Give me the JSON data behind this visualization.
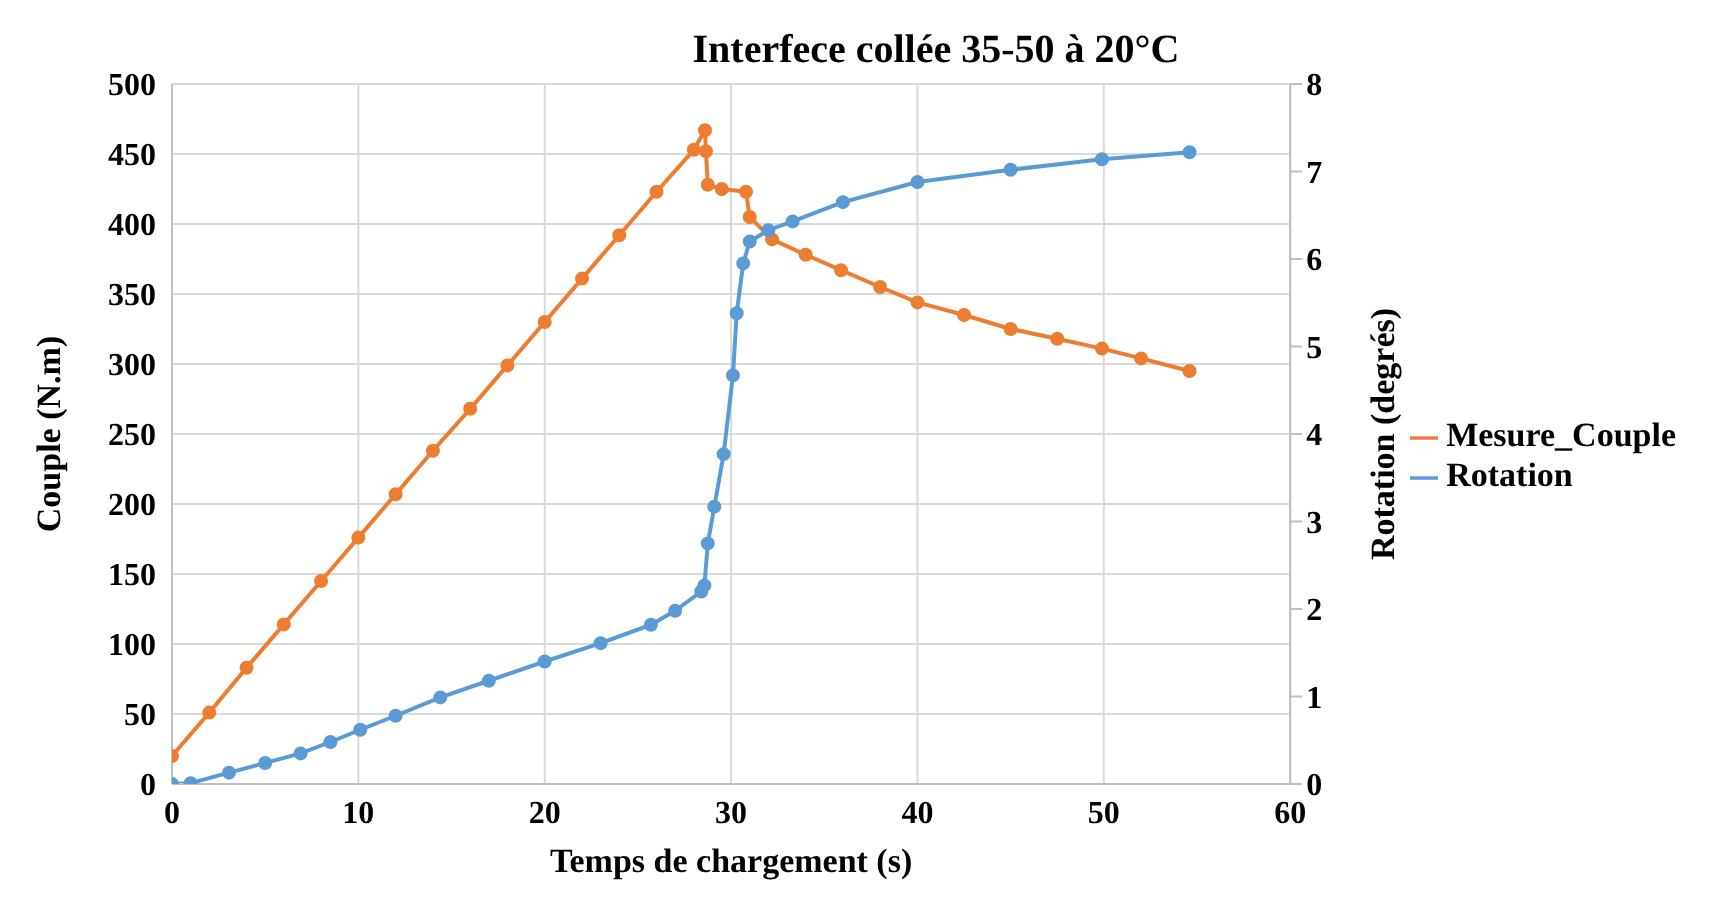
{
  "chart_data": {
    "type": "line",
    "title": "Interfece collée 35-50 à 20°C",
    "xlabel": "Temps de chargement (s)",
    "ylabel": "Couple (N.m)",
    "y2label": "Rotation (degrés)",
    "xlim": [
      0,
      60
    ],
    "xticks": [
      0,
      10,
      20,
      30,
      40,
      50,
      60
    ],
    "ylim": [
      0,
      500
    ],
    "yticks": [
      0,
      50,
      100,
      150,
      200,
      250,
      300,
      350,
      400,
      450,
      500
    ],
    "y2lim": [
      0,
      8
    ],
    "y2ticks": [
      0,
      1,
      2,
      3,
      4,
      5,
      6,
      7,
      8
    ],
    "grid": true,
    "legend": "right",
    "marker": "circle",
    "line_style": "solid",
    "series": [
      {
        "name": "Mesure_Couple",
        "color": "#ed7d31",
        "x": [
          0,
          2,
          4,
          6,
          8,
          10,
          12,
          14,
          16,
          18,
          20,
          22,
          24,
          26,
          28,
          28.6,
          28.65,
          28.75,
          29.5,
          30.8,
          31,
          32.2,
          34,
          35.9,
          38,
          40,
          42.5,
          45,
          47.5,
          49.9,
          52,
          54.6
        ],
        "values": [
          20,
          51,
          83,
          114,
          145,
          176,
          207,
          238,
          268,
          299,
          330,
          361,
          392,
          423,
          453,
          467,
          452,
          428,
          425,
          423,
          405,
          389,
          378,
          367,
          355,
          344,
          335,
          325,
          318,
          311,
          304,
          295
        ]
      },
      {
        "name": "Rotation",
        "color": "#5b9bd5",
        "axis": "y2",
        "x": [
          0,
          1,
          3.06,
          5,
          6.9,
          8.5,
          10.1,
          12,
          14.4,
          17,
          20,
          23,
          25.7,
          27,
          28.4,
          28.57,
          28.75,
          29.1,
          29.6,
          30.1,
          30.3,
          30.65,
          31,
          32,
          33.3,
          36,
          40,
          45,
          49.9,
          54.6
        ],
        "values": [
          0,
          0.01,
          0.13,
          0.24,
          0.35,
          0.48,
          0.62,
          0.78,
          0.99,
          1.18,
          1.4,
          1.61,
          1.82,
          1.98,
          2.2,
          2.27,
          2.75,
          3.17,
          3.77,
          4.67,
          5.38,
          5.95,
          6.2,
          6.33,
          6.43,
          6.65,
          6.88,
          7.02,
          7.14,
          7.22
        ]
      }
    ]
  }
}
